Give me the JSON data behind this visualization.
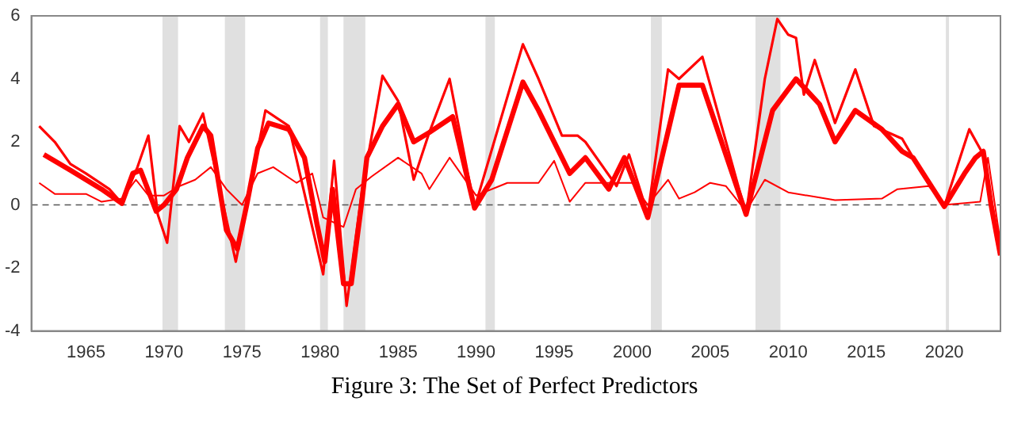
{
  "chart_data": {
    "type": "line",
    "annotations": [
      "Figure 3: The Set of Perfect Predictors"
    ],
    "xlim": [
      1961.5,
      2023.6
    ],
    "xticks": [
      1965,
      1970,
      1975,
      1980,
      1985,
      1990,
      1995,
      2000,
      2005,
      2010,
      2015,
      2020
    ],
    "ylim": [
      -4,
      6
    ],
    "yticks": [
      -4,
      -2,
      0,
      2,
      4,
      6
    ],
    "grid": false,
    "legend": false,
    "marker": "none",
    "line_style": "solid",
    "series": [
      {
        "color": "#ff0000",
        "x": [
          1962,
          1963,
          1964,
          1965,
          1966.5,
          1967.3,
          1968.3,
          1969,
          1969.6,
          1970.2,
          1971,
          1971.6,
          1972.5,
          1974.6,
          1976.5,
          1978,
          1980.2,
          1980.9,
          1981.7,
          1982.7,
          1984,
          1985,
          1986,
          1987,
          1988.3,
          1989.9,
          1993,
          1994,
          1995.5,
          1996.5,
          1997,
          1999,
          1999.8,
          2001,
          2002.3,
          2003,
          2004.5,
          2007.3,
          2008.5,
          2009.3,
          2010,
          2010.5,
          2011,
          2011.7,
          2013,
          2014.3,
          2015.5,
          2017.3,
          2018,
          2020,
          2021.6,
          2022.5,
          2023.6
        ],
        "values": [
          2.5,
          2.0,
          1.3,
          1.0,
          0.5,
          0.05,
          1.2,
          2.2,
          -0.3,
          -1.2,
          2.5,
          2.0,
          2.9,
          -1.8,
          3.0,
          2.5,
          -2.2,
          1.4,
          -3.2,
          0.5,
          4.1,
          3.3,
          0.8,
          2.3,
          4.0,
          -0.1,
          5.1,
          4.0,
          2.2,
          2.2,
          2.0,
          0.6,
          1.6,
          -0.3,
          4.3,
          4.0,
          4.7,
          -0.3,
          4.0,
          5.9,
          5.4,
          5.3,
          3.5,
          4.6,
          2.6,
          4.3,
          2.5,
          2.1,
          1.5,
          -0.05,
          2.4,
          1.6,
          -1.5
        ]
      },
      {
        "color": "#ff0000",
        "x": [
          1962.3,
          1964,
          1966,
          1967.3,
          1968,
          1968.5,
          1969.5,
          1970,
          1970.8,
          1971.5,
          1972.5,
          1973,
          1974,
          1974.7,
          1975.3,
          1976,
          1976.7,
          1978,
          1979,
          1979.8,
          1980.3,
          1980.8,
          1981.5,
          1982,
          1982.7,
          1983,
          1984,
          1985,
          1986,
          1987,
          1988.5,
          1989.9,
          1991,
          1993,
          1994,
          1996,
          1997,
          1998.5,
          1999.5,
          2001,
          2003,
          2004.5,
          2007.3,
          2009,
          2010.5,
          2012,
          2013,
          2014.3,
          2016,
          2017.3,
          2018,
          2020,
          2021.3,
          2022,
          2022.5,
          2023,
          2023.6
        ],
        "values": [
          1.6,
          1.1,
          0.5,
          0.05,
          1.0,
          1.1,
          -0.2,
          0.0,
          0.5,
          1.5,
          2.5,
          2.2,
          -0.8,
          -1.4,
          0,
          1.8,
          2.6,
          2.4,
          1.5,
          -0.6,
          -1.8,
          0.5,
          -2.5,
          -2.5,
          0.2,
          1.5,
          2.5,
          3.2,
          2.0,
          2.3,
          2.8,
          -0.1,
          0.8,
          3.9,
          3.0,
          1.0,
          1.5,
          0.5,
          1.5,
          -0.4,
          3.8,
          3.8,
          -0.3,
          3.0,
          4.0,
          3.2,
          2.0,
          3.0,
          2.4,
          1.7,
          1.5,
          -0.05,
          1.0,
          1.5,
          1.7,
          0,
          -1.6
        ]
      },
      {
        "color": "#ff0000",
        "x": [
          1962,
          1963,
          1965,
          1966,
          1967.3,
          1968.2,
          1969,
          1970,
          1971,
          1972,
          1973,
          1974,
          1975,
          1976,
          1977,
          1978.5,
          1979.5,
          1980.2,
          1981.5,
          1982.3,
          1983.3,
          1985,
          1986.5,
          1987,
          1988.3,
          1990,
          1991.5,
          1992,
          1994,
          1995,
          1996,
          1997,
          1998.5,
          2000,
          2001,
          2002.3,
          2003,
          2004,
          2005,
          2006,
          2007.3,
          2008.5,
          2010,
          2013,
          2016,
          2017,
          2019,
          2020,
          2022.3,
          2022.8,
          2023.6
        ],
        "values": [
          0.7,
          0.35,
          0.35,
          0.1,
          0.2,
          0.8,
          0.3,
          0.3,
          0.6,
          0.8,
          1.2,
          0.5,
          0,
          1.0,
          1.2,
          0.7,
          1.0,
          -0.4,
          -0.7,
          0.5,
          0.9,
          1.5,
          1.0,
          0.5,
          1.5,
          0.3,
          0.6,
          0.7,
          0.7,
          1.4,
          0.1,
          0.7,
          0.7,
          0.7,
          0.0,
          0.8,
          0.2,
          0.4,
          0.7,
          0.6,
          -0.2,
          0.8,
          0.4,
          0.15,
          0.2,
          0.5,
          0.6,
          0,
          0.1,
          1.5,
          -1.2
        ]
      }
    ],
    "ref_lines": [
      {
        "axis": "y",
        "value": 0,
        "color": "#555555",
        "line_style": "dashed"
      }
    ],
    "bands": [
      {
        "axis": "x",
        "from": 1969.9,
        "to": 1970.9,
        "color": "#e0e0e0"
      },
      {
        "axis": "x",
        "from": 1973.9,
        "to": 1975.2,
        "color": "#e0e0e0"
      },
      {
        "axis": "x",
        "from": 1980.0,
        "to": 1980.5,
        "color": "#e0e0e0"
      },
      {
        "axis": "x",
        "from": 1981.5,
        "to": 1982.9,
        "color": "#e0e0e0"
      },
      {
        "axis": "x",
        "from": 1990.6,
        "to": 1991.2,
        "color": "#e0e0e0"
      },
      {
        "axis": "x",
        "from": 2001.2,
        "to": 2001.9,
        "color": "#e0e0e0"
      },
      {
        "axis": "x",
        "from": 2007.9,
        "to": 2009.5,
        "color": "#e0e0e0"
      },
      {
        "axis": "x",
        "from": 2020.1,
        "to": 2020.3,
        "color": "#e0e0e0"
      }
    ]
  }
}
